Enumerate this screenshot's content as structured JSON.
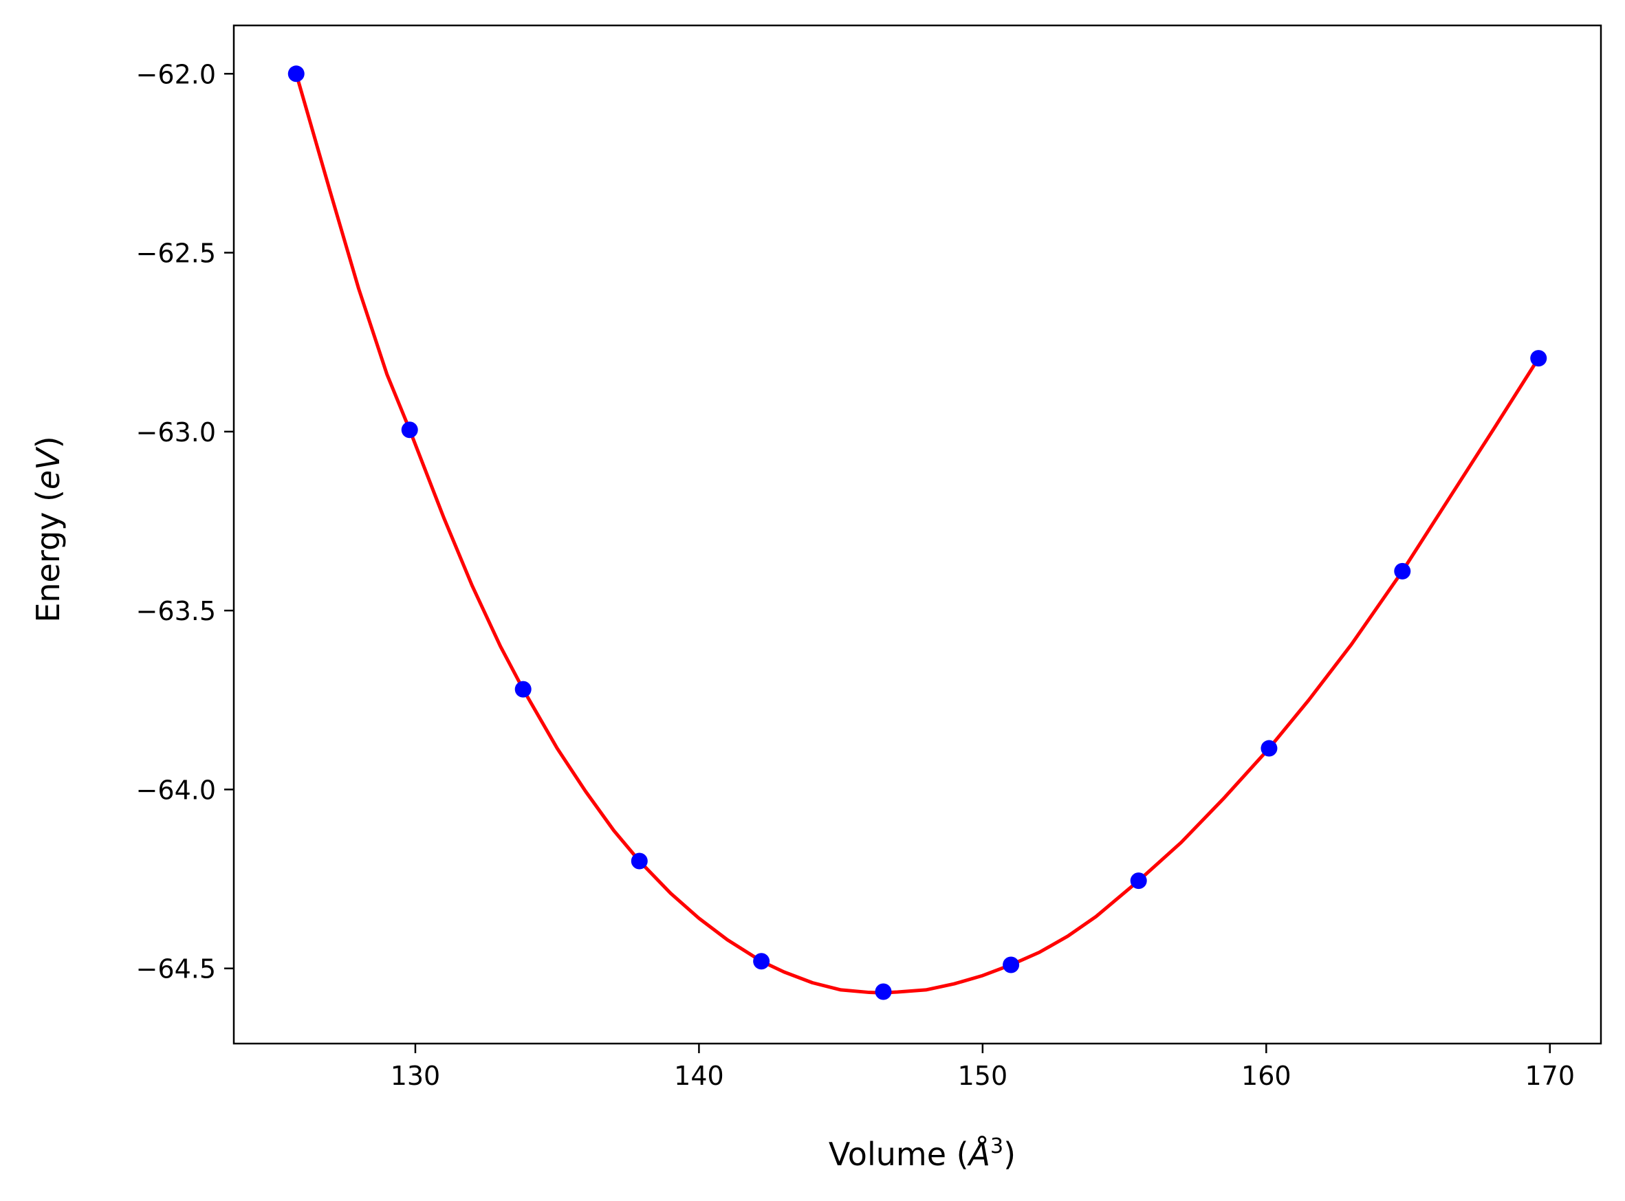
{
  "chart_data": {
    "type": "scatter",
    "xlabel": {
      "prefix": "Volume (",
      "unit_symbol": "Å",
      "unit_power": "3",
      "suffix": ")"
    },
    "ylabel": {
      "prefix": "Energy (",
      "unit": "eV",
      "suffix": ")"
    },
    "xlim": [
      123.6,
      171.8
    ],
    "ylim": [
      -64.71,
      -61.865
    ],
    "x_ticks": [
      130,
      140,
      150,
      160,
      170
    ],
    "y_ticks": [
      -62.0,
      -62.5,
      -63.0,
      -63.5,
      -64.0,
      -64.5
    ],
    "x_tick_labels": [
      "130",
      "140",
      "150",
      "160",
      "170"
    ],
    "y_tick_labels": [
      "−62.0",
      "−62.5",
      "−63.0",
      "−63.5",
      "−64.0",
      "−64.5"
    ],
    "grid": false,
    "legend": "none",
    "series": [
      {
        "kind": "points",
        "color": "#0000ff",
        "x": [
          125.8,
          129.8,
          133.8,
          137.9,
          142.2,
          146.5,
          151.0,
          155.5,
          160.1,
          164.8,
          169.6
        ],
        "y": [
          -62.0,
          -62.995,
          -63.72,
          -64.2,
          -64.48,
          -64.565,
          -64.49,
          -64.255,
          -63.885,
          -63.39,
          -62.795
        ]
      },
      {
        "kind": "fit-curve",
        "color": "#ff0000",
        "x": [
          125.8,
          127.0,
          128.0,
          129.0,
          129.8,
          131.0,
          132.0,
          133.0,
          133.8,
          135.0,
          136.0,
          137.0,
          137.9,
          139.0,
          140.0,
          141.0,
          142.2,
          143.0,
          144.0,
          145.0,
          146.0,
          146.5,
          147.0,
          148.0,
          149.0,
          150.0,
          151.0,
          152.0,
          153.0,
          154.0,
          155.5,
          157.0,
          158.5,
          160.1,
          161.5,
          163.0,
          164.8,
          166.5,
          168.0,
          169.6
        ],
        "y": [
          -62.0,
          -62.33,
          -62.6,
          -62.84,
          -62.995,
          -63.24,
          -63.43,
          -63.6,
          -63.72,
          -63.885,
          -64.005,
          -64.115,
          -64.2,
          -64.29,
          -64.36,
          -64.42,
          -64.48,
          -64.51,
          -64.54,
          -64.56,
          -64.567,
          -64.568,
          -64.566,
          -64.56,
          -64.543,
          -64.52,
          -64.49,
          -64.455,
          -64.41,
          -64.355,
          -64.255,
          -64.148,
          -64.025,
          -63.885,
          -63.75,
          -63.595,
          -63.39,
          -63.18,
          -62.995,
          -62.795
        ]
      }
    ]
  }
}
